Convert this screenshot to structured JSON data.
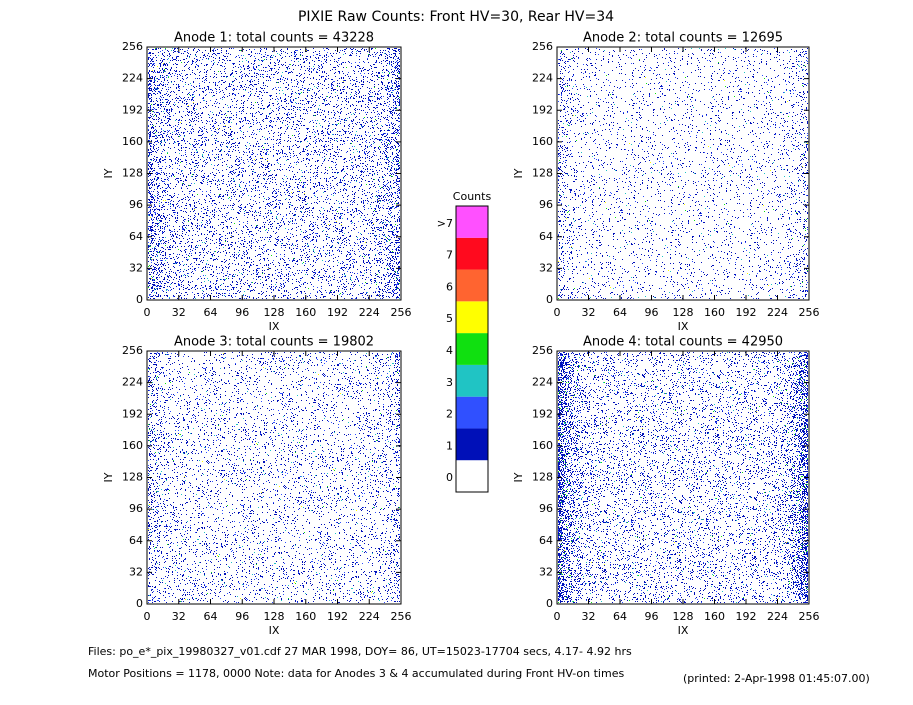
{
  "title": "PIXIE Raw Counts:  Front HV=30, Rear HV=34",
  "chart_data": [
    {
      "type": "heatmap",
      "title": "Anode 1: total counts = 43228",
      "xlabel": "IX",
      "ylabel": "IY",
      "xlim": [
        0,
        256
      ],
      "xticks": [
        0,
        32,
        64,
        96,
        128,
        160,
        192,
        224,
        256
      ],
      "ylim": [
        0,
        256
      ],
      "yticks": [
        0,
        32,
        64,
        96,
        128,
        160,
        192,
        224,
        256
      ]
    },
    {
      "type": "heatmap",
      "title": "Anode 2: total counts = 12695",
      "xlabel": "IX",
      "ylabel": "IY",
      "xlim": [
        0,
        256
      ],
      "xticks": [
        0,
        32,
        64,
        96,
        128,
        160,
        192,
        224,
        256
      ],
      "ylim": [
        0,
        256
      ],
      "yticks": [
        0,
        32,
        64,
        96,
        128,
        160,
        192,
        224,
        256
      ]
    },
    {
      "type": "heatmap",
      "title": "Anode 3: total counts = 19802",
      "xlabel": "IX",
      "ylabel": "IY",
      "xlim": [
        0,
        256
      ],
      "xticks": [
        0,
        32,
        64,
        96,
        128,
        160,
        192,
        224,
        256
      ],
      "ylim": [
        0,
        256
      ],
      "yticks": [
        0,
        32,
        64,
        96,
        128,
        160,
        192,
        224,
        256
      ]
    },
    {
      "type": "heatmap",
      "title": "Anode 4: total counts = 42950",
      "xlabel": "IX",
      "ylabel": "IY",
      "xlim": [
        0,
        256
      ],
      "xticks": [
        0,
        32,
        64,
        96,
        128,
        160,
        192,
        224,
        256
      ],
      "ylim": [
        0,
        256
      ],
      "yticks": [
        0,
        32,
        64,
        96,
        128,
        160,
        192,
        224,
        256
      ]
    }
  ],
  "colorbar": {
    "title": "Counts",
    "labels": [
      "0",
      "1",
      "2",
      "3",
      "4",
      "5",
      "6",
      "7",
      ">7"
    ],
    "colors": [
      "#ffffff",
      "#0010b8",
      "#3050ff",
      "#20c4c4",
      "#10e010",
      "#ffff00",
      "#ff6430",
      "#ff0a1e",
      "#ff50ff"
    ]
  },
  "footer": {
    "files": "Files: po_e*_pix_19980327_v01.cdf    27 MAR 1998, DOY= 86, UT=15023-17704 secs,  4.17- 4.92 hrs",
    "motor": "Motor Positions = 1178, 0000    Note: data for Anodes 3 & 4 accumulated during Front HV-on times",
    "printed": "(printed:  2-Apr-1998 01:45:07.00)"
  }
}
